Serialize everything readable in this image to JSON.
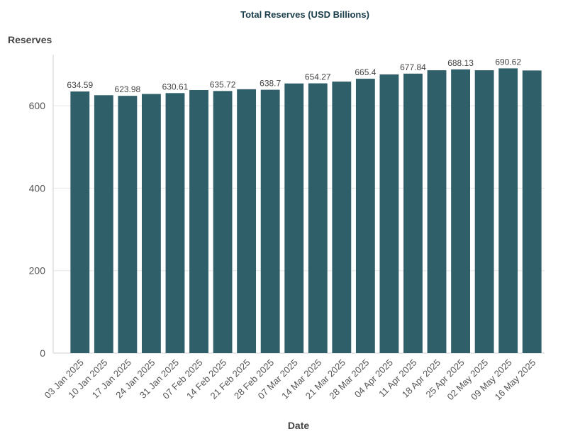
{
  "chart_data": {
    "type": "bar",
    "title": "Total Reserves (USD Billions)",
    "xlabel": "Date",
    "ylabel": "Reserves",
    "ylim": [
      0,
      720
    ],
    "yticks": [
      0,
      200,
      400,
      600
    ],
    "grid": true,
    "bar_color": "#2f5f69",
    "categories": [
      "03 Jan 2025",
      "10 Jan 2025",
      "17 Jan 2025",
      "24 Jan 2025",
      "31 Jan 2025",
      "07 Feb 2025",
      "14 Feb 2025",
      "21 Feb 2025",
      "28 Feb 2025",
      "07 Mar 2025",
      "14 Mar 2025",
      "21 Mar 2025",
      "28 Mar 2025",
      "04 Apr 2025",
      "11 Apr 2025",
      "18 Apr 2025",
      "25 Apr 2025",
      "02 May 2025",
      "09 May 2025",
      "16 May 2025"
    ],
    "values": [
      634.59,
      625.5,
      623.98,
      628.5,
      630.61,
      638.0,
      635.72,
      640.0,
      638.7,
      654.0,
      654.27,
      658.5,
      665.4,
      676.0,
      677.84,
      686.0,
      688.13,
      686.0,
      690.62,
      685.5
    ],
    "labels": [
      "634.59",
      "",
      "623.98",
      "",
      "630.61",
      "",
      "635.72",
      "",
      "638.7",
      "",
      "654.27",
      "",
      "665.4",
      "",
      "677.84",
      "",
      "688.13",
      "",
      "690.62",
      ""
    ]
  }
}
